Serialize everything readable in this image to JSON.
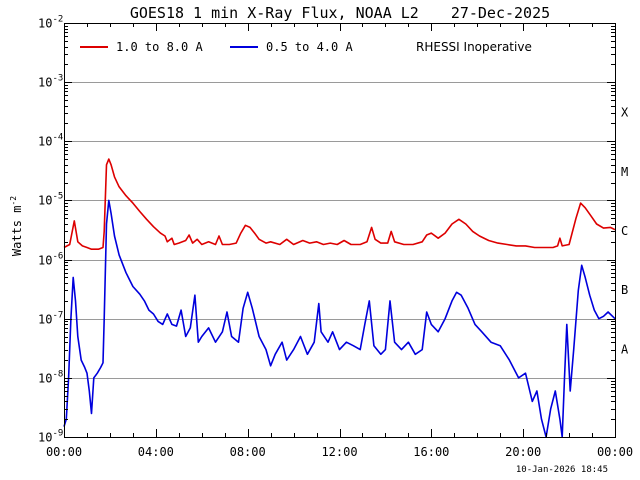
{
  "chart_data": {
    "type": "line",
    "title": "GOES18 1 min X-Ray Flux, NOAA L2",
    "date": "27-Dec-2025",
    "ylabel": "Watts m",
    "ylabel_sup": "-2",
    "y_scale": "log",
    "ylim": [
      1e-09,
      0.01
    ],
    "y_ticks": [
      {
        "value": 1e-09,
        "label": "10",
        "sup": "-9"
      },
      {
        "value": 1e-08,
        "label": "10",
        "sup": "-8"
      },
      {
        "value": 1e-07,
        "label": "10",
        "sup": "-7"
      },
      {
        "value": 1e-06,
        "label": "10",
        "sup": "-6"
      },
      {
        "value": 1e-05,
        "label": "10",
        "sup": "-5"
      },
      {
        "value": 0.0001,
        "label": "10",
        "sup": "-4"
      },
      {
        "value": 0.001,
        "label": "10",
        "sup": "-3"
      },
      {
        "value": 0.01,
        "label": "10",
        "sup": "-2"
      }
    ],
    "xlim": [
      0,
      24
    ],
    "x_ticks": [
      {
        "value": 0,
        "label": "00:00"
      },
      {
        "value": 4,
        "label": "04:00"
      },
      {
        "value": 8,
        "label": "08:00"
      },
      {
        "value": 12,
        "label": "12:00"
      },
      {
        "value": 16,
        "label": "16:00"
      },
      {
        "value": 20,
        "label": "20:00"
      },
      {
        "value": 24,
        "label": "00:00"
      }
    ],
    "grid": "horizontal at 1e-8 through 1e-3",
    "flare_classes": [
      {
        "label": "A",
        "value": 1e-08
      },
      {
        "label": "B",
        "value": 1e-07
      },
      {
        "label": "C",
        "value": 1e-06
      },
      {
        "label": "M",
        "value": 1e-05
      },
      {
        "label": "X",
        "value": 0.0001
      }
    ],
    "legend_position": "top-left",
    "annotation": "RHESSI Inoperative",
    "timestamp": "10-Jan-2026 18:45",
    "series": [
      {
        "name": "1.0 to 8.0 A",
        "color": "#dd0000",
        "points": [
          [
            0,
            1.6e-06
          ],
          [
            0.25,
            1.8e-06
          ],
          [
            0.45,
            4.5e-06
          ],
          [
            0.6,
            2e-06
          ],
          [
            0.8,
            1.7e-06
          ],
          [
            1.0,
            1.6e-06
          ],
          [
            1.2,
            1.5e-06
          ],
          [
            1.5,
            1.5e-06
          ],
          [
            1.7,
            1.6e-06
          ],
          [
            1.75,
            3e-06
          ],
          [
            1.85,
            4e-05
          ],
          [
            1.95,
            5e-05
          ],
          [
            2.05,
            4e-05
          ],
          [
            2.2,
            2.5e-05
          ],
          [
            2.4,
            1.7e-05
          ],
          [
            2.7,
            1.2e-05
          ],
          [
            3.0,
            9e-06
          ],
          [
            3.3,
            6.5e-06
          ],
          [
            3.6,
            4.8e-06
          ],
          [
            3.9,
            3.6e-06
          ],
          [
            4.2,
            2.8e-06
          ],
          [
            4.4,
            2.5e-06
          ],
          [
            4.5,
            2e-06
          ],
          [
            4.7,
            2.3e-06
          ],
          [
            4.8,
            1.8e-06
          ],
          [
            5.0,
            1.9e-06
          ],
          [
            5.3,
            2.1e-06
          ],
          [
            5.45,
            2.6e-06
          ],
          [
            5.6,
            1.9e-06
          ],
          [
            5.8,
            2.2e-06
          ],
          [
            6.0,
            1.8e-06
          ],
          [
            6.3,
            2e-06
          ],
          [
            6.6,
            1.8e-06
          ],
          [
            6.75,
            2.5e-06
          ],
          [
            6.9,
            1.8e-06
          ],
          [
            7.2,
            1.8e-06
          ],
          [
            7.5,
            1.9e-06
          ],
          [
            7.7,
            2.8e-06
          ],
          [
            7.9,
            3.8e-06
          ],
          [
            8.1,
            3.5e-06
          ],
          [
            8.3,
            2.8e-06
          ],
          [
            8.5,
            2.2e-06
          ],
          [
            8.8,
            1.9e-06
          ],
          [
            9.0,
            2e-06
          ],
          [
            9.4,
            1.8e-06
          ],
          [
            9.7,
            2.2e-06
          ],
          [
            10.0,
            1.8e-06
          ],
          [
            10.4,
            2.1e-06
          ],
          [
            10.7,
            1.9e-06
          ],
          [
            11.0,
            2e-06
          ],
          [
            11.3,
            1.8e-06
          ],
          [
            11.6,
            1.9e-06
          ],
          [
            11.9,
            1.8e-06
          ],
          [
            12.2,
            2.1e-06
          ],
          [
            12.5,
            1.8e-06
          ],
          [
            12.9,
            1.8e-06
          ],
          [
            13.2,
            2e-06
          ],
          [
            13.4,
            3.5e-06
          ],
          [
            13.55,
            2.2e-06
          ],
          [
            13.8,
            1.9e-06
          ],
          [
            14.1,
            1.9e-06
          ],
          [
            14.25,
            3e-06
          ],
          [
            14.4,
            2e-06
          ],
          [
            14.8,
            1.8e-06
          ],
          [
            15.2,
            1.8e-06
          ],
          [
            15.6,
            2e-06
          ],
          [
            15.8,
            2.6e-06
          ],
          [
            16.0,
            2.8e-06
          ],
          [
            16.3,
            2.3e-06
          ],
          [
            16.6,
            2.8e-06
          ],
          [
            16.9,
            4e-06
          ],
          [
            17.2,
            4.8e-06
          ],
          [
            17.5,
            4e-06
          ],
          [
            17.8,
            3e-06
          ],
          [
            18.1,
            2.5e-06
          ],
          [
            18.5,
            2.1e-06
          ],
          [
            18.9,
            1.9e-06
          ],
          [
            19.3,
            1.8e-06
          ],
          [
            19.7,
            1.7e-06
          ],
          [
            20.1,
            1.7e-06
          ],
          [
            20.5,
            1.6e-06
          ],
          [
            20.9,
            1.6e-06
          ],
          [
            21.3,
            1.6e-06
          ],
          [
            21.5,
            1.7e-06
          ],
          [
            21.6,
            2.3e-06
          ],
          [
            21.7,
            1.7e-06
          ],
          [
            22.0,
            1.8e-06
          ],
          [
            22.3,
            5e-06
          ],
          [
            22.5,
            9e-06
          ],
          [
            22.7,
            7.5e-06
          ],
          [
            22.95,
            5.5e-06
          ],
          [
            23.2,
            4e-06
          ],
          [
            23.5,
            3.4e-06
          ],
          [
            23.8,
            3.5e-06
          ],
          [
            24.0,
            3.2e-06
          ]
        ]
      },
      {
        "name": "0.5 to 4.0 A",
        "color": "#0000dd",
        "points": [
          [
            0,
            1.5e-09
          ],
          [
            0.1,
            2e-09
          ],
          [
            0.2,
            1e-08
          ],
          [
            0.3,
            1e-07
          ],
          [
            0.4,
            5e-07
          ],
          [
            0.5,
            2e-07
          ],
          [
            0.6,
            5e-08
          ],
          [
            0.75,
            2e-08
          ],
          [
            0.9,
            1.5e-08
          ],
          [
            1.0,
            1.2e-08
          ],
          [
            1.1,
            6e-09
          ],
          [
            1.2,
            2.5e-09
          ],
          [
            1.3,
            1e-08
          ],
          [
            1.45,
            1.2e-08
          ],
          [
            1.6,
            1.5e-08
          ],
          [
            1.7,
            1.8e-08
          ],
          [
            1.75,
            1e-07
          ],
          [
            1.85,
            4e-06
          ],
          [
            1.95,
            1e-05
          ],
          [
            2.05,
            6e-06
          ],
          [
            2.2,
            2.5e-06
          ],
          [
            2.4,
            1.2e-06
          ],
          [
            2.7,
            6e-07
          ],
          [
            3.0,
            3.5e-07
          ],
          [
            3.3,
            2.6e-07
          ],
          [
            3.5,
            2e-07
          ],
          [
            3.7,
            1.4e-07
          ],
          [
            3.9,
            1.2e-07
          ],
          [
            4.1,
            9e-08
          ],
          [
            4.3,
            8e-08
          ],
          [
            4.5,
            1.2e-07
          ],
          [
            4.7,
            8e-08
          ],
          [
            4.9,
            7.5e-08
          ],
          [
            5.1,
            1.4e-07
          ],
          [
            5.3,
            5e-08
          ],
          [
            5.5,
            7e-08
          ],
          [
            5.7,
            2.5e-07
          ],
          [
            5.85,
            4e-08
          ],
          [
            6.0,
            5e-08
          ],
          [
            6.3,
            7e-08
          ],
          [
            6.6,
            4e-08
          ],
          [
            6.9,
            6e-08
          ],
          [
            7.1,
            1.3e-07
          ],
          [
            7.3,
            5e-08
          ],
          [
            7.6,
            4e-08
          ],
          [
            7.8,
            1.5e-07
          ],
          [
            8.0,
            2.8e-07
          ],
          [
            8.2,
            1.5e-07
          ],
          [
            8.5,
            5e-08
          ],
          [
            8.8,
            3e-08
          ],
          [
            9.0,
            1.6e-08
          ],
          [
            9.2,
            2.5e-08
          ],
          [
            9.5,
            4e-08
          ],
          [
            9.7,
            2e-08
          ],
          [
            10.0,
            3e-08
          ],
          [
            10.3,
            5e-08
          ],
          [
            10.6,
            2.5e-08
          ],
          [
            10.9,
            4e-08
          ],
          [
            11.1,
            1.8e-07
          ],
          [
            11.2,
            6e-08
          ],
          [
            11.5,
            4e-08
          ],
          [
            11.7,
            6e-08
          ],
          [
            12.0,
            3e-08
          ],
          [
            12.3,
            4e-08
          ],
          [
            12.6,
            3.5e-08
          ],
          [
            12.9,
            3e-08
          ],
          [
            13.1,
            8e-08
          ],
          [
            13.3,
            2e-07
          ],
          [
            13.5,
            3.5e-08
          ],
          [
            13.8,
            2.5e-08
          ],
          [
            14.0,
            3e-08
          ],
          [
            14.2,
            2e-07
          ],
          [
            14.4,
            4e-08
          ],
          [
            14.7,
            3e-08
          ],
          [
            15.0,
            4e-08
          ],
          [
            15.3,
            2.5e-08
          ],
          [
            15.6,
            3e-08
          ],
          [
            15.8,
            1.3e-07
          ],
          [
            16.0,
            8e-08
          ],
          [
            16.3,
            6e-08
          ],
          [
            16.6,
            1e-07
          ],
          [
            16.9,
            2e-07
          ],
          [
            17.1,
            2.8e-07
          ],
          [
            17.3,
            2.5e-07
          ],
          [
            17.6,
            1.5e-07
          ],
          [
            17.9,
            8e-08
          ],
          [
            18.2,
            6e-08
          ],
          [
            18.6,
            4e-08
          ],
          [
            19.0,
            3.5e-08
          ],
          [
            19.4,
            2e-08
          ],
          [
            19.8,
            1e-08
          ],
          [
            20.1,
            1.2e-08
          ],
          [
            20.4,
            4e-09
          ],
          [
            20.6,
            6e-09
          ],
          [
            20.8,
            2e-09
          ],
          [
            21.0,
            1e-09
          ],
          [
            21.2,
            3e-09
          ],
          [
            21.4,
            6e-09
          ],
          [
            21.6,
            2e-09
          ],
          [
            21.7,
            1e-09
          ],
          [
            21.8,
            1e-08
          ],
          [
            21.9,
            8e-08
          ],
          [
            22.05,
            6e-09
          ],
          [
            22.2,
            3e-08
          ],
          [
            22.4,
            3e-07
          ],
          [
            22.55,
            8e-07
          ],
          [
            22.7,
            5e-07
          ],
          [
            22.9,
            2.5e-07
          ],
          [
            23.1,
            1.4e-07
          ],
          [
            23.3,
            1e-07
          ],
          [
            23.5,
            1.1e-07
          ],
          [
            23.7,
            1.3e-07
          ],
          [
            24.0,
            1e-07
          ]
        ]
      }
    ]
  }
}
